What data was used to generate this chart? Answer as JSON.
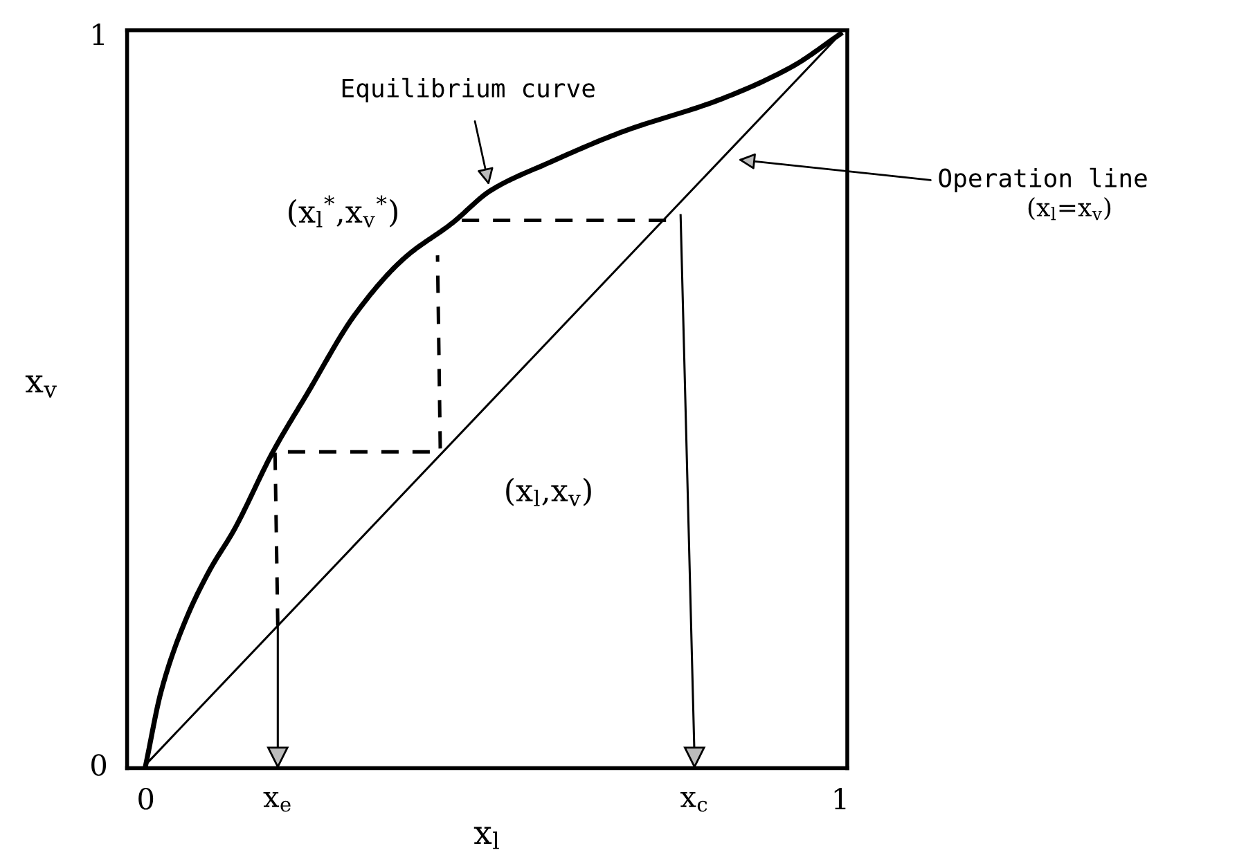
{
  "chart_data": {
    "type": "line",
    "xlabel": "x$_{l}$",
    "ylabel": "x$_{v}$",
    "xlim": [
      -0.027,
      1.01
    ],
    "ylim": [
      -0.005,
      1.005
    ],
    "xticks": [
      0,
      1
    ],
    "yticks": [
      0,
      1
    ],
    "grid": false,
    "legend": false,
    "series": [
      {
        "color": "#000000",
        "x": [
          0,
          0.022,
          0.057,
          0.092,
          0.127,
          0.183,
          0.232,
          0.302,
          0.372,
          0.441,
          0.497,
          0.581,
          0.686,
          0.826,
          0.93,
          1
        ],
        "values": [
          0,
          0.1,
          0.197,
          0.266,
          0.321,
          0.428,
          0.507,
          0.617,
          0.693,
          0.741,
          0.786,
          0.824,
          0.866,
          0.91,
          0.955,
          1
        ]
      },
      {
        "color": "#000000",
        "x": [
          0,
          1
        ],
        "values": [
          0,
          1
        ]
      },
      {
        "color": "#000000",
        "line_style": "dashed",
        "x": [
          0.19,
          0.186,
          0.424,
          0.42
        ],
        "values": [
          0.19,
          0.428,
          0.428,
          0.697
        ]
      },
      {
        "color": "#000000",
        "line_style": "dashed",
        "x": [
          0.455,
          0.77
        ],
        "values": [
          0.745,
          0.745
        ]
      },
      {
        "color": "#000000",
        "marker": "triangle",
        "x": [
          0.19,
          0.19
        ],
        "values": [
          0.19,
          0.01
        ]
      },
      {
        "color": "#000000",
        "marker": "triangle",
        "x": [
          0.77,
          0.79
        ],
        "values": [
          0.752,
          0.01
        ]
      }
    ],
    "annotations": [
      {
        "text": "Equilibrium curve",
        "x": 0.494,
        "y": 0.793
      },
      "Operation line",
      "(x$_{l}$=x$_{v}$)",
      "(x$_{l}$$^{*}$,x$_{v}$$^{*}$)",
      "(x$_{l}$,x$_{v}$)",
      {
        "text": "x$_{e}$",
        "x": 0.19,
        "y": 0
      },
      {
        "text": "x$_{c}$",
        "x": 0.79,
        "y": 0
      }
    ]
  }
}
